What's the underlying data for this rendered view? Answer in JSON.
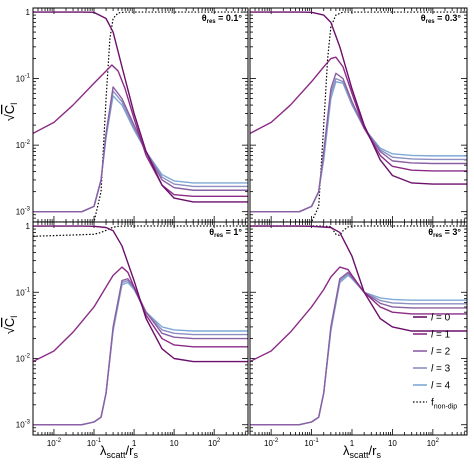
{
  "figure": {
    "xlabel": "λ_scatt/r_s",
    "ylabel": "√C̄_l"
  },
  "chart_data": {
    "type": "line",
    "xscale": "log",
    "yscale": "log",
    "xlim": [
      0.003,
      700
    ],
    "ylim": [
      0.0007,
      1.15
    ],
    "x_ticks": [
      0.01,
      0.1,
      1,
      10,
      100
    ],
    "x_tick_labels": [
      "10^-2",
      "10^-1",
      "1",
      "10",
      "10^2"
    ],
    "y_ticks": [
      0.001,
      0.01,
      0.1,
      1
    ],
    "y_tick_labels": [
      "10^-3",
      "10^-2",
      "10^-1",
      "1"
    ],
    "legend": {
      "placement": "bottom-right of lower-right panel",
      "entries": [
        {
          "label": "l = 0",
          "color": "#6b0f6b",
          "dash": "solid"
        },
        {
          "label": "l = 1",
          "color": "#8b2b86",
          "dash": "solid"
        },
        {
          "label": "l = 2",
          "color": "#8a5fa3",
          "dash": "solid"
        },
        {
          "label": "l = 3",
          "color": "#8c8fc0",
          "dash": "solid"
        },
        {
          "label": "l = 4",
          "color": "#7fa9d6",
          "dash": "solid"
        },
        {
          "label": "f_non-dip",
          "color": "#000000",
          "dash": "dotted"
        }
      ]
    },
    "panels": [
      {
        "label": "θres = 0.1°",
        "series": [
          {
            "name": "l = 0",
            "x": [
              0.003,
              0.01,
              0.05,
              0.1,
              0.2,
              0.3,
              0.5,
              1,
              2,
              5,
              10,
              30,
              100,
              700
            ],
            "y": [
              1.0,
              1.0,
              1.0,
              0.99,
              0.8,
              0.5,
              0.15,
              0.03,
              0.008,
              0.0025,
              0.0016,
              0.0014,
              0.0014,
              0.0014
            ]
          },
          {
            "name": "l = 1",
            "x": [
              0.003,
              0.01,
              0.03,
              0.1,
              0.2,
              0.28,
              0.4,
              0.6,
              1,
              2,
              5,
              10,
              30,
              100,
              700
            ],
            "y": [
              0.015,
              0.022,
              0.04,
              0.085,
              0.13,
              0.16,
              0.13,
              0.07,
              0.025,
              0.007,
              0.0025,
              0.0018,
              0.0017,
              0.0017,
              0.0017
            ]
          },
          {
            "name": "l = 2",
            "x": [
              0.003,
              0.05,
              0.1,
              0.15,
              0.2,
              0.3,
              0.5,
              1,
              2,
              5,
              10,
              30,
              100,
              700
            ],
            "y": [
              0.001,
              0.001,
              0.0012,
              0.003,
              0.015,
              0.075,
              0.05,
              0.02,
              0.008,
              0.003,
              0.0023,
              0.0021,
              0.0021,
              0.0021
            ]
          },
          {
            "name": "l = 3",
            "x": [
              0.003,
              0.05,
              0.1,
              0.15,
              0.2,
              0.3,
              0.5,
              1,
              2,
              5,
              10,
              30,
              100,
              700
            ],
            "y": [
              0.001,
              0.001,
              0.0012,
              0.003,
              0.014,
              0.065,
              0.045,
              0.018,
              0.008,
              0.0033,
              0.0026,
              0.0024,
              0.0024,
              0.0024
            ]
          },
          {
            "name": "l = 4",
            "x": [
              0.003,
              0.05,
              0.1,
              0.15,
              0.2,
              0.3,
              0.5,
              1,
              2,
              5,
              10,
              30,
              100,
              700
            ],
            "y": [
              0.001,
              0.001,
              0.0012,
              0.003,
              0.013,
              0.055,
              0.04,
              0.017,
              0.008,
              0.0036,
              0.0029,
              0.0027,
              0.0027,
              0.0027
            ]
          },
          {
            "name": "f_non-dip",
            "x": [
              0.003,
              0.1,
              0.15,
              0.2,
              0.25,
              0.3,
              0.4,
              0.6,
              1,
              700
            ],
            "y": [
              0.0007,
              0.0007,
              0.002,
              0.05,
              0.4,
              0.8,
              0.97,
              1.0,
              1.0,
              1.0
            ]
          }
        ]
      },
      {
        "label": "θres = 0.3°",
        "series": [
          {
            "name": "l = 0",
            "x": [
              0.003,
              0.01,
              0.05,
              0.1,
              0.2,
              0.3,
              0.5,
              1,
              2,
              5,
              10,
              30,
              100,
              700
            ],
            "y": [
              1.0,
              1.0,
              1.0,
              0.99,
              0.9,
              0.7,
              0.3,
              0.07,
              0.02,
              0.006,
              0.0035,
              0.0027,
              0.0026,
              0.0026
            ]
          },
          {
            "name": "l = 1",
            "x": [
              0.003,
              0.01,
              0.03,
              0.1,
              0.2,
              0.3,
              0.4,
              0.6,
              1,
              2,
              5,
              10,
              30,
              100,
              700
            ],
            "y": [
              0.015,
              0.022,
              0.04,
              0.09,
              0.15,
              0.2,
              0.21,
              0.15,
              0.06,
              0.018,
              0.007,
              0.0048,
              0.0042,
              0.0041,
              0.0041
            ]
          },
          {
            "name": "l = 2",
            "x": [
              0.003,
              0.05,
              0.1,
              0.15,
              0.2,
              0.3,
              0.4,
              0.6,
              1,
              2,
              5,
              10,
              30,
              100,
              700
            ],
            "y": [
              0.001,
              0.001,
              0.0012,
              0.002,
              0.008,
              0.07,
              0.12,
              0.1,
              0.045,
              0.018,
              0.008,
              0.0058,
              0.0054,
              0.0053,
              0.0053
            ]
          },
          {
            "name": "l = 3",
            "x": [
              0.003,
              0.05,
              0.1,
              0.15,
              0.2,
              0.3,
              0.4,
              0.6,
              1,
              2,
              5,
              10,
              30,
              100,
              700
            ],
            "y": [
              0.001,
              0.001,
              0.0012,
              0.002,
              0.007,
              0.06,
              0.1,
              0.09,
              0.042,
              0.018,
              0.0085,
              0.0066,
              0.0062,
              0.0061,
              0.0061
            ]
          },
          {
            "name": "l = 4",
            "x": [
              0.003,
              0.05,
              0.1,
              0.15,
              0.2,
              0.3,
              0.4,
              0.6,
              1,
              2,
              5,
              10,
              30,
              100,
              700
            ],
            "y": [
              0.001,
              0.001,
              0.0012,
              0.002,
              0.006,
              0.05,
              0.09,
              0.085,
              0.04,
              0.018,
              0.009,
              0.0074,
              0.007,
              0.0069,
              0.0069
            ]
          },
          {
            "name": "f_non-dip",
            "x": [
              0.003,
              0.1,
              0.15,
              0.2,
              0.25,
              0.3,
              0.4,
              0.6,
              1,
              700
            ],
            "y": [
              0.0007,
              0.0007,
              0.0012,
              0.02,
              0.2,
              0.6,
              0.9,
              1.0,
              1.0,
              1.0
            ]
          }
        ]
      },
      {
        "label": "θres = 1°",
        "series": [
          {
            "name": "l = 0",
            "x": [
              0.003,
              0.01,
              0.05,
              0.1,
              0.2,
              0.3,
              0.5,
              1,
              2,
              5,
              10,
              30,
              100,
              700
            ],
            "y": [
              1.0,
              1.0,
              1.0,
              0.99,
              0.95,
              0.85,
              0.5,
              0.15,
              0.04,
              0.014,
              0.01,
              0.009,
              0.009,
              0.009
            ]
          },
          {
            "name": "l = 1",
            "x": [
              0.003,
              0.01,
              0.03,
              0.1,
              0.2,
              0.3,
              0.5,
              0.7,
              1,
              2,
              5,
              10,
              30,
              100,
              700
            ],
            "y": [
              0.009,
              0.013,
              0.025,
              0.06,
              0.12,
              0.18,
              0.24,
              0.2,
              0.12,
              0.045,
              0.02,
              0.016,
              0.015,
              0.015,
              0.015
            ]
          },
          {
            "name": "l = 2",
            "x": [
              0.003,
              0.05,
              0.1,
              0.15,
              0.2,
              0.3,
              0.5,
              0.7,
              1,
              2,
              5,
              10,
              30,
              100,
              700
            ],
            "y": [
              0.001,
              0.001,
              0.0011,
              0.0013,
              0.003,
              0.03,
              0.15,
              0.16,
              0.12,
              0.05,
              0.024,
              0.021,
              0.02,
              0.02,
              0.02
            ]
          },
          {
            "name": "l = 3",
            "x": [
              0.003,
              0.05,
              0.1,
              0.15,
              0.2,
              0.3,
              0.5,
              0.7,
              1,
              2,
              5,
              10,
              30,
              100,
              700
            ],
            "y": [
              0.001,
              0.001,
              0.0011,
              0.0013,
              0.003,
              0.028,
              0.14,
              0.15,
              0.115,
              0.05,
              0.027,
              0.024,
              0.023,
              0.023,
              0.023
            ]
          },
          {
            "name": "l = 4",
            "x": [
              0.003,
              0.05,
              0.1,
              0.15,
              0.2,
              0.3,
              0.5,
              0.7,
              1,
              2,
              5,
              10,
              30,
              100,
              700
            ],
            "y": [
              0.001,
              0.001,
              0.0011,
              0.0013,
              0.003,
              0.026,
              0.13,
              0.14,
              0.11,
              0.05,
              0.03,
              0.027,
              0.026,
              0.026,
              0.026
            ]
          },
          {
            "name": "f_non-dip",
            "x": [
              0.003,
              0.1,
              0.15,
              0.2,
              0.25,
              0.3,
              0.4,
              0.6,
              1,
              700
            ],
            "y": [
              0.7,
              0.75,
              0.8,
              0.86,
              0.92,
              0.96,
              0.99,
              1.0,
              1.0,
              1.0
            ]
          }
        ]
      },
      {
        "label": "θres = 3°",
        "series": [
          {
            "name": "l = 0",
            "x": [
              0.003,
              0.01,
              0.05,
              0.1,
              0.3,
              0.5,
              1,
              2,
              5,
              10,
              30,
              100,
              700
            ],
            "y": [
              1.0,
              1.0,
              1.0,
              0.99,
              0.95,
              0.8,
              0.35,
              0.1,
              0.04,
              0.03,
              0.026,
              0.026,
              0.026
            ]
          },
          {
            "name": "l = 1",
            "x": [
              0.003,
              0.01,
              0.03,
              0.1,
              0.2,
              0.3,
              0.5,
              0.8,
              1,
              2,
              5,
              10,
              30,
              100,
              700
            ],
            "y": [
              0.009,
              0.013,
              0.025,
              0.06,
              0.11,
              0.17,
              0.24,
              0.22,
              0.18,
              0.1,
              0.06,
              0.05,
              0.047,
              0.047,
              0.047
            ]
          },
          {
            "name": "l = 2",
            "x": [
              0.003,
              0.05,
              0.1,
              0.15,
              0.2,
              0.3,
              0.5,
              0.8,
              1,
              2,
              5,
              10,
              30,
              100,
              700
            ],
            "y": [
              0.001,
              0.001,
              0.0011,
              0.0013,
              0.003,
              0.03,
              0.16,
              0.2,
              0.17,
              0.1,
              0.068,
              0.06,
              0.058,
              0.058,
              0.058
            ]
          },
          {
            "name": "l = 3",
            "x": [
              0.003,
              0.05,
              0.1,
              0.15,
              0.2,
              0.3,
              0.5,
              0.8,
              1,
              2,
              5,
              10,
              30,
              100,
              700
            ],
            "y": [
              0.001,
              0.001,
              0.0011,
              0.0013,
              0.003,
              0.028,
              0.15,
              0.19,
              0.165,
              0.1,
              0.075,
              0.069,
              0.067,
              0.067,
              0.067
            ]
          },
          {
            "name": "l = 4",
            "x": [
              0.003,
              0.05,
              0.1,
              0.15,
              0.2,
              0.3,
              0.5,
              0.8,
              1,
              2,
              5,
              10,
              30,
              100,
              700
            ],
            "y": [
              0.001,
              0.001,
              0.0011,
              0.0013,
              0.003,
              0.026,
              0.14,
              0.18,
              0.16,
              0.1,
              0.082,
              0.078,
              0.076,
              0.076,
              0.076
            ]
          },
          {
            "name": "f_non-dip",
            "x": [
              0.003,
              0.1,
              0.2,
              0.3,
              0.4,
              0.5,
              0.6,
              0.8,
              1,
              700
            ],
            "y": [
              1.0,
              1.0,
              1.0,
              0.98,
              0.75,
              0.72,
              0.85,
              0.97,
              1.0,
              1.0
            ]
          }
        ]
      }
    ]
  }
}
